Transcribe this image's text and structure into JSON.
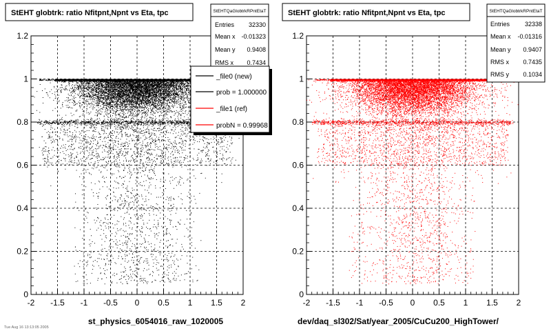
{
  "chart_data": [
    {
      "type": "scatter",
      "title": "StEHT globtrk: ratio Nfitpnt,Npnt vs Eta, tpc",
      "xlabel": "st_physics_6054016_raw_1020005",
      "ylabel": "",
      "xlim": [
        -2,
        2
      ],
      "ylim": [
        0,
        1.2
      ],
      "x_ticks": [
        "-2",
        "-1.5",
        "-1",
        "-0.5",
        "0",
        "0.5",
        "1",
        "1.5",
        "2"
      ],
      "y_ticks": [
        "0",
        "0.2",
        "0.4",
        "0.6",
        "0.8",
        "1",
        "1.2"
      ],
      "grid": true,
      "marker_color": "#000000",
      "series": [
        {
          "name": "_file0 (new)",
          "color": "#000000"
        },
        {
          "name": "_file1 (ref)",
          "color": "#ff0000"
        }
      ],
      "density_profile": {
        "band_y": 1.0,
        "secondary_band_y": 0.8,
        "x_core": [
          -1.5,
          1.5
        ]
      },
      "stats": {
        "name": "StEHTQaGlobtrkRPntEtaT",
        "rows": [
          {
            "label": "Entries",
            "value": "32330"
          },
          {
            "label": "Mean x",
            "value": "-0.01323"
          },
          {
            "label": "Mean y",
            "value": "0.9408"
          },
          {
            "label": "RMS x",
            "value": "0.7434"
          }
        ]
      },
      "legend": {
        "placement": "top-right",
        "entries": [
          {
            "label": "_file0 (new)",
            "color": "#000000"
          },
          {
            "label": "prob = 1.000000",
            "color": "#000000"
          },
          {
            "label": "_file1 (ref)",
            "color": "#ff0000"
          },
          {
            "label": "probN = 0.99968",
            "color": "#ff0000"
          }
        ]
      }
    },
    {
      "type": "scatter",
      "title": "StEHT globtrk: ratio Nfitpnt,Npnt vs Eta, tpc",
      "xlabel": "dev/daq_sl302/Sat/year_2005/CuCu200_HighTower/",
      "ylabel": "",
      "xlim": [
        -2,
        2
      ],
      "ylim": [
        0,
        1.2
      ],
      "x_ticks": [
        "-2",
        "-1.5",
        "-1",
        "-0.5",
        "0",
        "0.5",
        "1",
        "1.5",
        "2"
      ],
      "y_ticks": [
        "0",
        "0.2",
        "0.4",
        "0.6",
        "0.8",
        "1",
        "1.2"
      ],
      "grid": true,
      "marker_color": "#ff0000",
      "density_profile": {
        "band_y": 1.0,
        "secondary_band_y": 0.8,
        "x_core": [
          -1.5,
          1.5
        ]
      },
      "stats": {
        "name": "StEHTQaGlobtrkRPntEtaT",
        "rows": [
          {
            "label": "Entries",
            "value": "32338"
          },
          {
            "label": "Mean x",
            "value": "-0.01316"
          },
          {
            "label": "Mean y",
            "value": "0.9407"
          },
          {
            "label": "RMS x",
            "value": "0.7435"
          },
          {
            "label": "RMS y",
            "value": "0.1034"
          }
        ]
      }
    }
  ],
  "footer_note": "Tue Aug 16 13:13:05 2005"
}
